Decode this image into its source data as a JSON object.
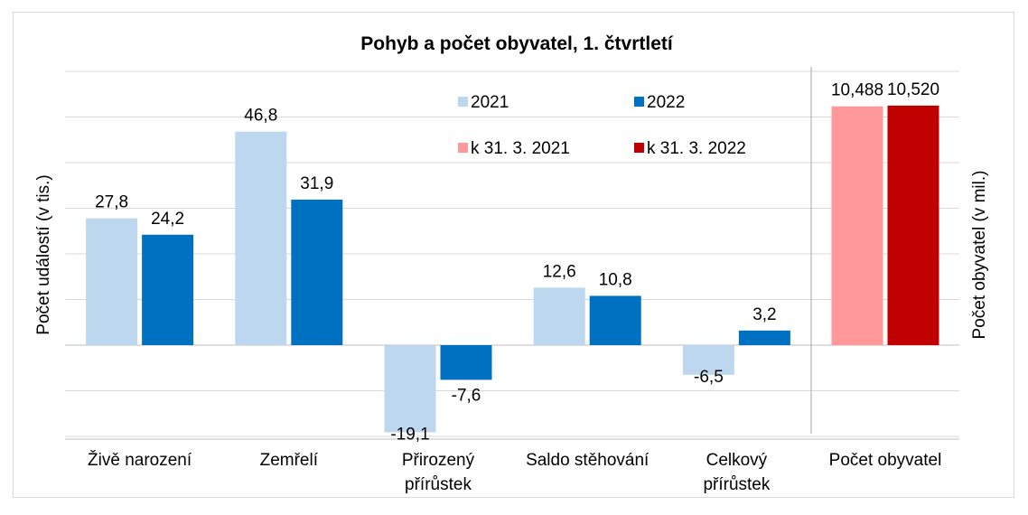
{
  "chart_data": {
    "type": "bar",
    "title": "Pohyb a počet obyvatel, 1. čtvrtletí",
    "ylabel_left": "Počet událostí (v tis.)",
    "ylabel_right": "Počet obyvatel (v mil.)",
    "categories": [
      "Živě narození",
      "Zemřelí",
      "Přirozený přírůstek",
      "Saldo stěhování",
      "Celkový přírůstek",
      "Počet obyvatel"
    ],
    "category_lines": [
      [
        "Živě narození"
      ],
      [
        "Zemřelí"
      ],
      [
        "Přirozený",
        "přírůstek"
      ],
      [
        "Saldo stěhování"
      ],
      [
        "Celkový",
        "přírůstek"
      ],
      [
        "Počet obyvatel"
      ]
    ],
    "series": [
      {
        "name": "2021",
        "color": "#BDD7EE",
        "axis": "left",
        "values": [
          27.8,
          46.8,
          -19.1,
          12.6,
          -6.5,
          null
        ],
        "labels": [
          "27,8",
          "46,8",
          "-19,1",
          "12,6",
          "-6,5",
          null
        ]
      },
      {
        "name": "2022",
        "color": "#0070C0",
        "axis": "left",
        "values": [
          24.2,
          31.9,
          -7.6,
          10.8,
          3.2,
          null
        ],
        "labels": [
          "24,2",
          "31,9",
          "-7,6",
          "10,8",
          "3,2",
          null
        ]
      },
      {
        "name": "k 31. 3. 2021",
        "color": "#FF9999",
        "axis": "right",
        "values": [
          null,
          null,
          null,
          null,
          null,
          10.488
        ],
        "labels": [
          null,
          null,
          null,
          null,
          null,
          "10,488"
        ]
      },
      {
        "name": "k 31. 3. 2022",
        "color": "#C00000",
        "axis": "right",
        "values": [
          null,
          null,
          null,
          null,
          null,
          10.52
        ],
        "labels": [
          null,
          null,
          null,
          null,
          null,
          "10,520"
        ]
      }
    ],
    "ylim_left": [
      -20,
      60
    ],
    "ylim_right": [
      0,
      12.5
    ],
    "grid": true,
    "legend": "top-center"
  }
}
